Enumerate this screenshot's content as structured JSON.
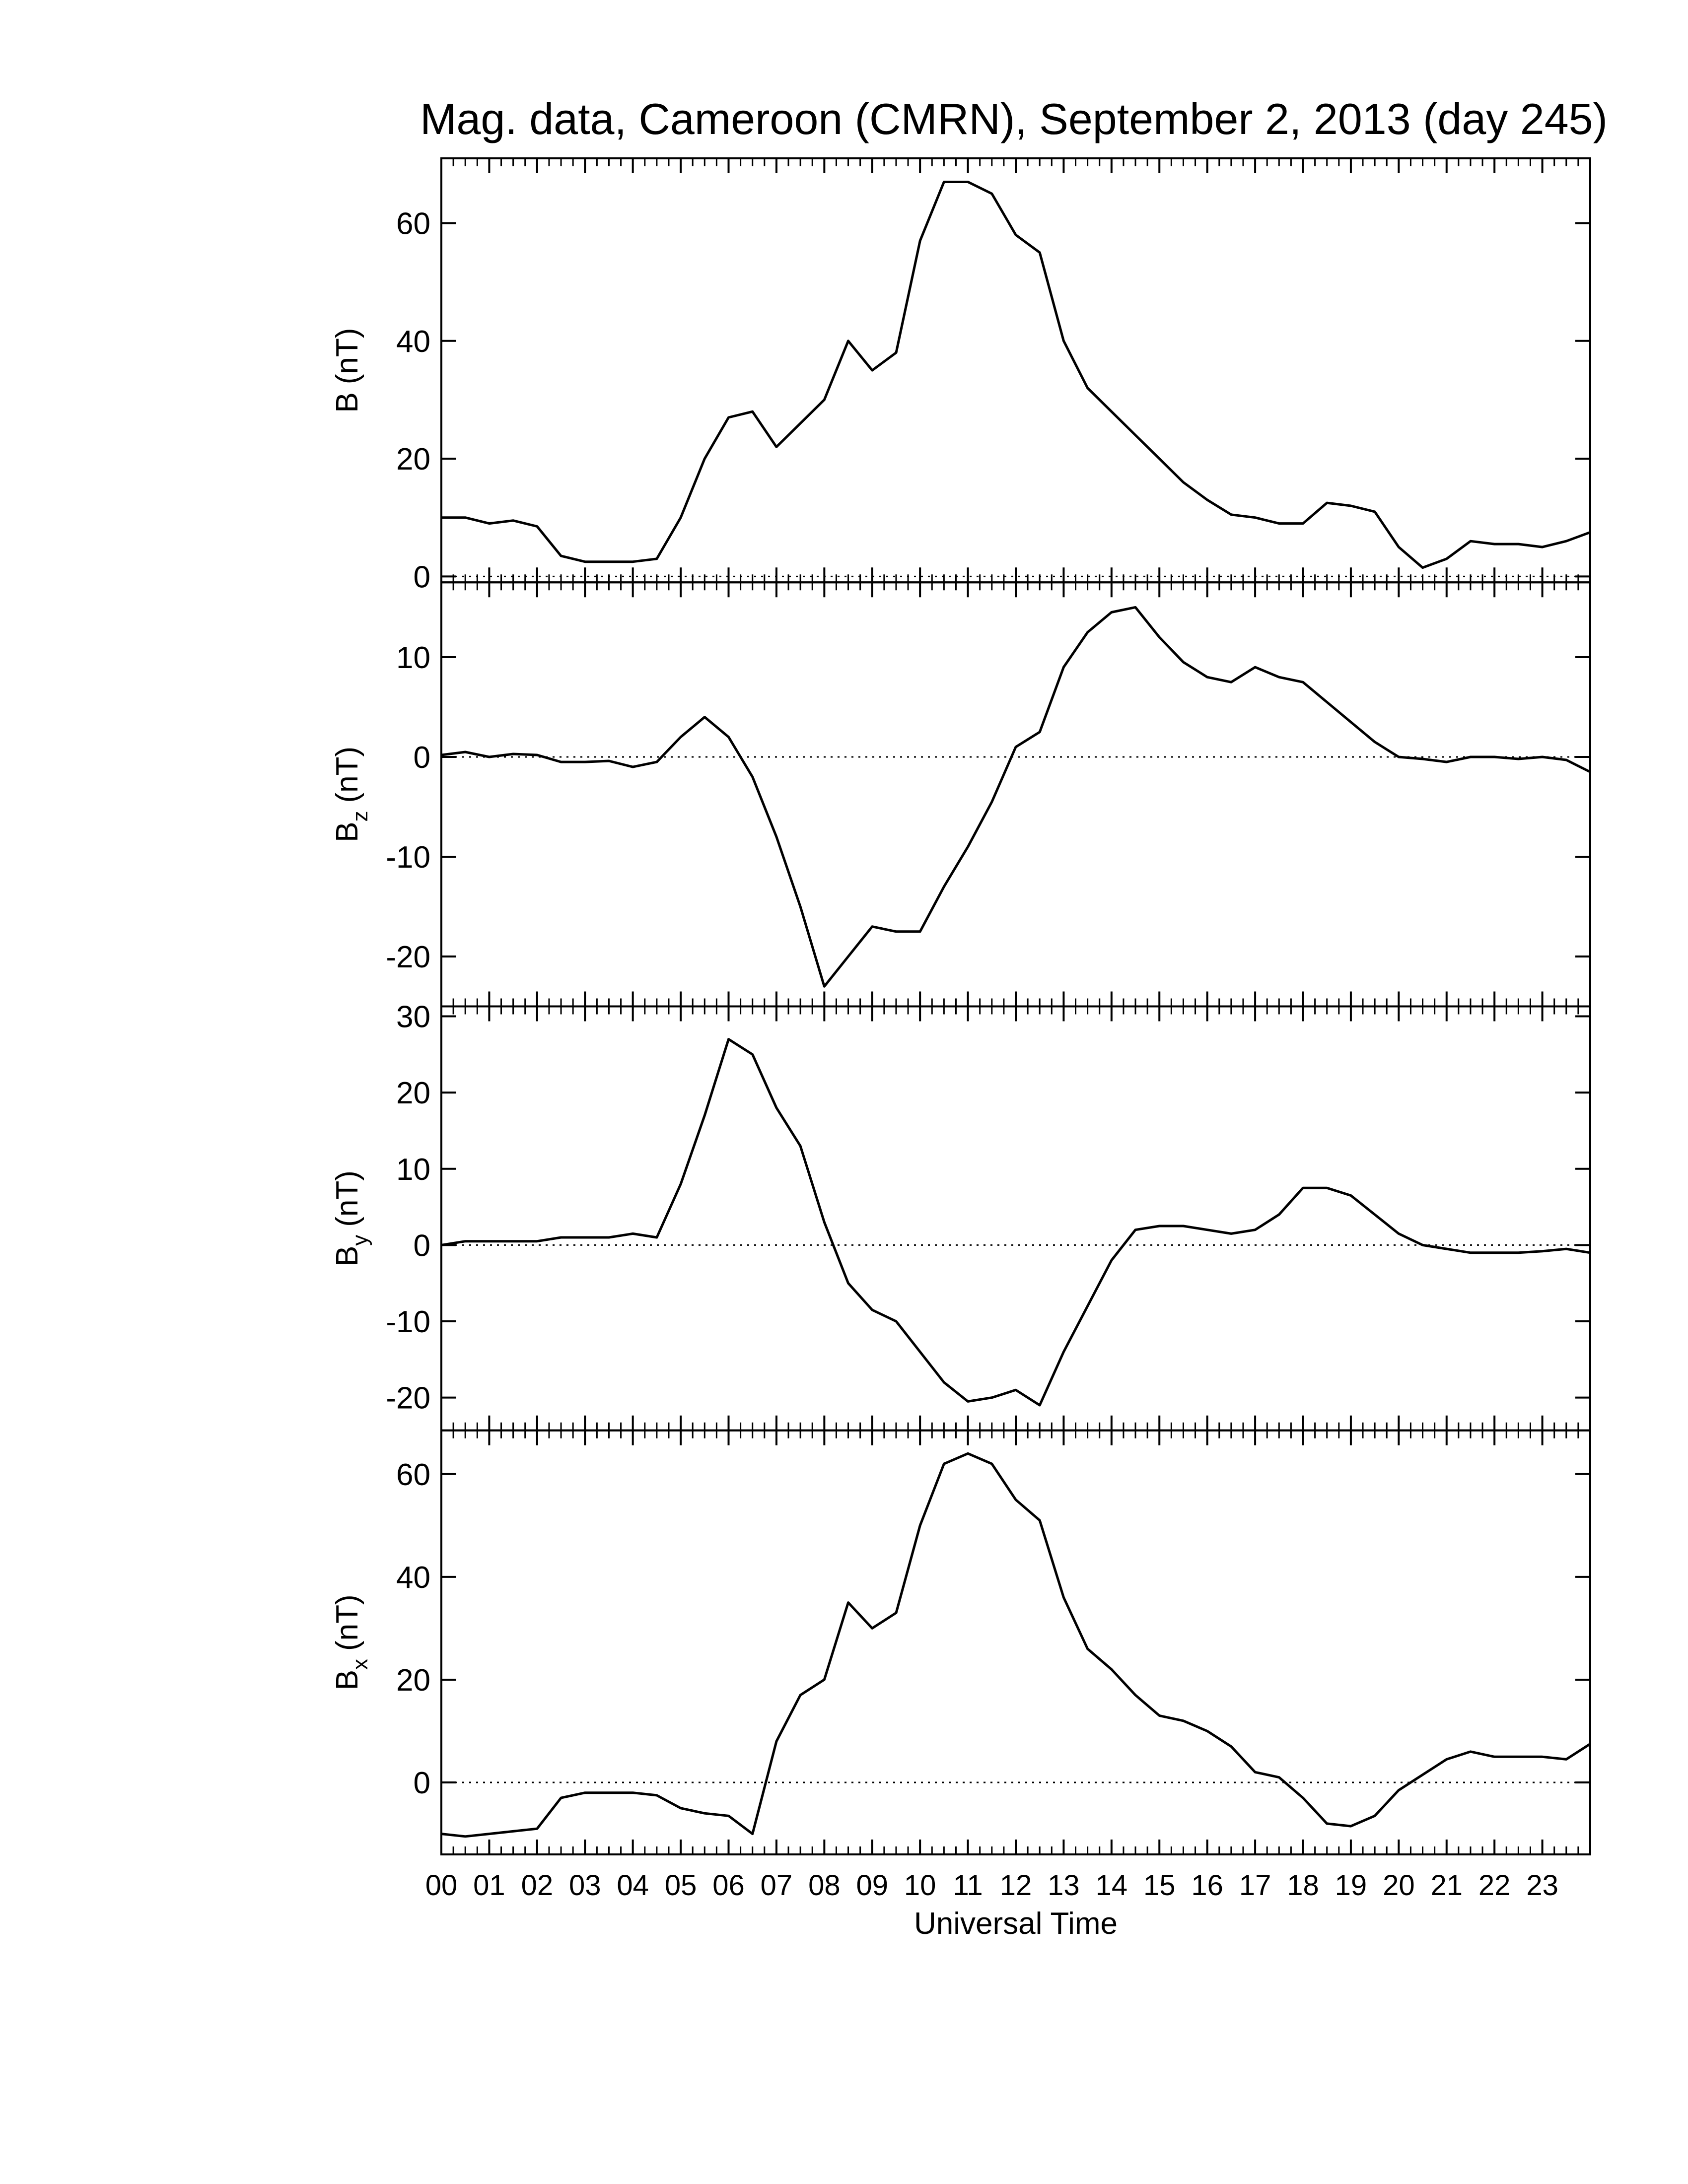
{
  "chart_data": [
    {
      "type": "line",
      "title": "Mag. data, Cameroon (CMRN), September 2, 2013 (day 245)",
      "ylabel": "B",
      "ylabel_unit": "(nT)",
      "color": "#000000",
      "zero_line": true,
      "x": [
        0,
        0.5,
        1,
        1.5,
        2,
        2.5,
        3,
        3.5,
        4,
        4.5,
        5,
        5.5,
        6,
        6.5,
        7,
        7.5,
        8,
        8.5,
        9,
        9.5,
        10,
        10.5,
        11,
        11.5,
        12,
        12.5,
        13,
        13.5,
        14,
        14.5,
        15,
        15.5,
        16,
        16.5,
        17,
        17.5,
        18,
        18.5,
        19,
        19.5,
        20,
        20.5,
        21,
        21.5,
        22,
        22.5,
        23,
        23.5,
        24
      ],
      "values": [
        10,
        10,
        9,
        9.5,
        8.5,
        3.5,
        2.5,
        2.5,
        2.5,
        3,
        10,
        20,
        27,
        28,
        22,
        26,
        30,
        40,
        35,
        38,
        57,
        67,
        67,
        65,
        58,
        55,
        40,
        32,
        28,
        24,
        20,
        16,
        13,
        10.5,
        10,
        9,
        9,
        12.5,
        12,
        11,
        5,
        1.5,
        3,
        6,
        5.5,
        5.5,
        5,
        6,
        7.5
      ],
      "xlim": [
        0,
        24
      ],
      "ylim": [
        -1,
        71
      ],
      "yticks": [
        0,
        20,
        40,
        60
      ]
    },
    {
      "type": "line",
      "ylabel": "B",
      "ylabel_sub": "z",
      "ylabel_unit": "(nT)",
      "color": "#000000",
      "zero_line": true,
      "x": [
        0,
        0.5,
        1,
        1.5,
        2,
        2.5,
        3,
        3.5,
        4,
        4.5,
        5,
        5.5,
        6,
        6.5,
        7,
        7.5,
        8,
        8.5,
        9,
        9.5,
        10,
        10.5,
        11,
        11.5,
        12,
        12.5,
        13,
        13.5,
        14,
        14.5,
        15,
        15.5,
        16,
        16.5,
        17,
        17.5,
        18,
        18.5,
        19,
        19.5,
        20,
        20.5,
        21,
        21.5,
        22,
        22.5,
        23,
        23.5,
        24
      ],
      "values": [
        0.2,
        0.5,
        0,
        0.3,
        0.2,
        -0.5,
        -0.5,
        -0.4,
        -1,
        -0.5,
        2,
        4,
        2,
        -2,
        -8,
        -15,
        -23,
        -20,
        -17,
        -17.5,
        -17.5,
        -13,
        -9,
        -4.5,
        1,
        2.5,
        9,
        12.5,
        14.5,
        15,
        12,
        9.5,
        8,
        7.5,
        9,
        8,
        7.5,
        5.5,
        3.5,
        1.5,
        0,
        -0.2,
        -0.5,
        0,
        0,
        -0.2,
        0,
        -0.3,
        -1.5
      ],
      "xlim": [
        0,
        24
      ],
      "ylim": [
        -25,
        17.5
      ],
      "yticks": [
        -20,
        -10,
        0,
        10
      ]
    },
    {
      "type": "line",
      "ylabel": "B",
      "ylabel_sub": "y",
      "ylabel_unit": "(nT)",
      "color": "#000000",
      "zero_line": true,
      "x": [
        0,
        0.5,
        1,
        1.5,
        2,
        2.5,
        3,
        3.5,
        4,
        4.5,
        5,
        5.5,
        6,
        6.5,
        7,
        7.5,
        8,
        8.5,
        9,
        9.5,
        10,
        10.5,
        11,
        11.5,
        12,
        12.5,
        13,
        13.5,
        14,
        14.5,
        15,
        15.5,
        16,
        16.5,
        17,
        17.5,
        18,
        18.5,
        19,
        19.5,
        20,
        20.5,
        21,
        21.5,
        22,
        22.5,
        23,
        23.5,
        24
      ],
      "values": [
        0,
        0.5,
        0.5,
        0.5,
        0.5,
        1,
        1,
        1,
        1.5,
        1,
        8,
        17,
        27,
        25,
        18,
        13,
        3,
        -5,
        -8.5,
        -10,
        -14,
        -18,
        -20.5,
        -20,
        -19,
        -21,
        -14,
        -8,
        -2,
        2,
        2.5,
        2.5,
        2,
        1.5,
        2,
        4,
        7.5,
        7.5,
        6.5,
        4,
        1.5,
        0,
        -0.5,
        -1,
        -1,
        -1,
        -0.8,
        -0.5,
        -1
      ],
      "xlim": [
        0,
        24
      ],
      "ylim": [
        -24.3,
        31.3
      ],
      "yticks": [
        -20,
        -10,
        0,
        10,
        20,
        30
      ]
    },
    {
      "type": "line",
      "ylabel": "B",
      "ylabel_sub": "x",
      "ylabel_unit": "(nT)",
      "color": "#000000",
      "zero_line": true,
      "xlabel": "Universal Time",
      "x": [
        0,
        0.5,
        1,
        1.5,
        2,
        2.5,
        3,
        3.5,
        4,
        4.5,
        5,
        5.5,
        6,
        6.5,
        7,
        7.5,
        8,
        8.5,
        9,
        9.5,
        10,
        10.5,
        11,
        11.5,
        12,
        12.5,
        13,
        13.5,
        14,
        14.5,
        15,
        15.5,
        16,
        16.5,
        17,
        17.5,
        18,
        18.5,
        19,
        19.5,
        20,
        20.5,
        21,
        21.5,
        22,
        22.5,
        23,
        23.5,
        24
      ],
      "values": [
        -10,
        -10.5,
        -10,
        -9.5,
        -9,
        -3,
        -2,
        -2,
        -2,
        -2.5,
        -5,
        -6,
        -6.5,
        -10,
        8,
        17,
        20,
        35,
        30,
        33,
        50,
        62,
        64,
        62,
        55,
        51,
        36,
        26,
        22,
        17,
        13,
        12,
        10,
        7,
        2,
        1,
        -3,
        -8,
        -8.5,
        -6.5,
        -1.5,
        1.5,
        4.5,
        6,
        5,
        5,
        5,
        4.5,
        7.5
      ],
      "xlim": [
        0,
        24
      ],
      "ylim": [
        -14,
        68.5
      ],
      "yticks": [
        0,
        20,
        40,
        60
      ],
      "xticks": [
        {
          "value": 0,
          "label": "00"
        },
        {
          "value": 1,
          "label": "01"
        },
        {
          "value": 2,
          "label": "02"
        },
        {
          "value": 3,
          "label": "03"
        },
        {
          "value": 4,
          "label": "04"
        },
        {
          "value": 5,
          "label": "05"
        },
        {
          "value": 6,
          "label": "06"
        },
        {
          "value": 7,
          "label": "07"
        },
        {
          "value": 8,
          "label": "08"
        },
        {
          "value": 9,
          "label": "09"
        },
        {
          "value": 10,
          "label": "10"
        },
        {
          "value": 11,
          "label": "11"
        },
        {
          "value": 12,
          "label": "12"
        },
        {
          "value": 13,
          "label": "13"
        },
        {
          "value": 14,
          "label": "14"
        },
        {
          "value": 15,
          "label": "15"
        },
        {
          "value": 16,
          "label": "16"
        },
        {
          "value": 17,
          "label": "17"
        },
        {
          "value": 18,
          "label": "18"
        },
        {
          "value": 19,
          "label": "19"
        },
        {
          "value": 20,
          "label": "20"
        },
        {
          "value": 21,
          "label": "21"
        },
        {
          "value": 22,
          "label": "22"
        },
        {
          "value": 23,
          "label": "23"
        }
      ]
    }
  ]
}
